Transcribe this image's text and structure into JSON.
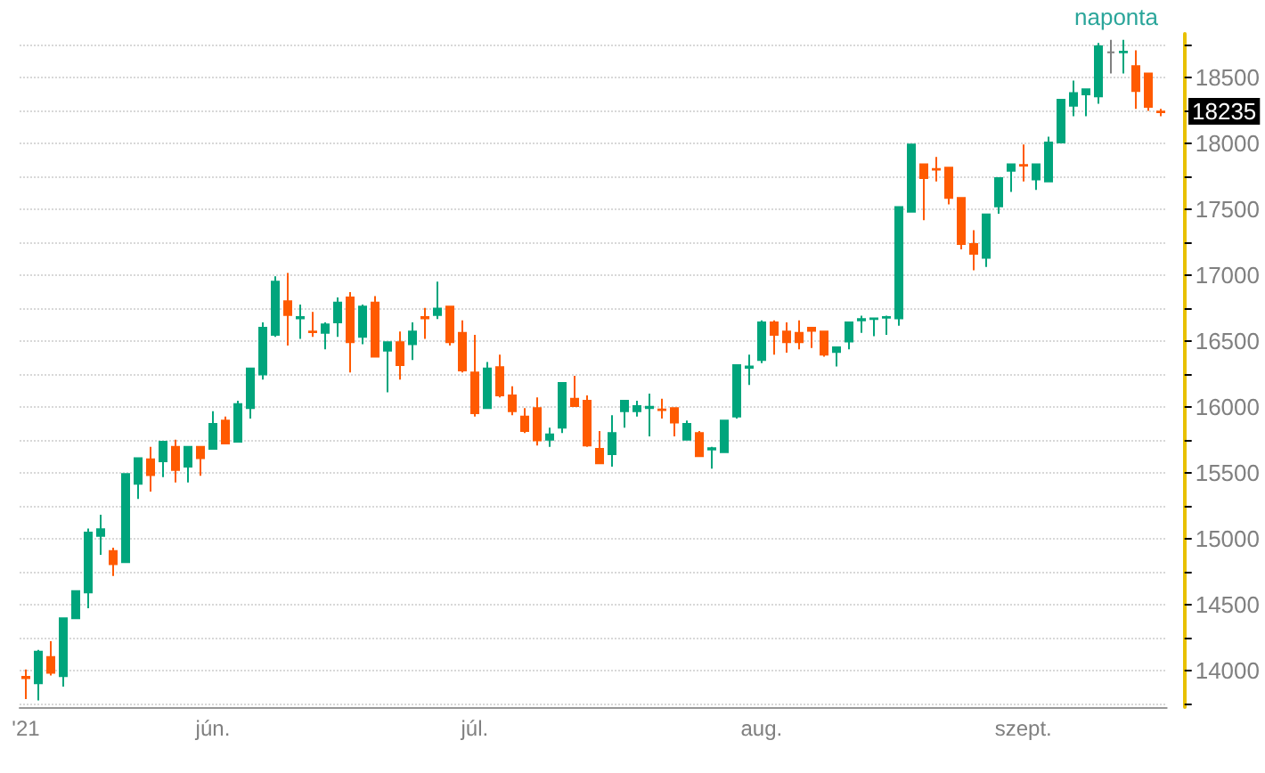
{
  "chart_data": {
    "type": "candlestick",
    "subtitle": "naponta",
    "categories": [
      "'21",
      null,
      null,
      null,
      null,
      null,
      null,
      null,
      null,
      null,
      null,
      null,
      null,
      null,
      null,
      "jún.",
      null,
      null,
      null,
      null,
      null,
      null,
      null,
      null,
      null,
      null,
      null,
      null,
      null,
      null,
      null,
      null,
      null,
      null,
      null,
      null,
      "júl.",
      null,
      null,
      null,
      null,
      null,
      null,
      null,
      null,
      null,
      null,
      null,
      null,
      null,
      null,
      null,
      null,
      null,
      null,
      null,
      null,
      null,
      null,
      "aug.",
      null,
      null,
      null,
      null,
      null,
      null,
      null,
      null,
      null,
      null,
      null,
      null,
      null,
      null,
      null,
      null,
      null,
      null,
      null,
      null,
      "szept.",
      null,
      null,
      null,
      null,
      null,
      null,
      null,
      null,
      null,
      null,
      null
    ],
    "ohlc": [
      [
        13950,
        14005,
        13780,
        13940
      ],
      [
        13900,
        14155,
        13770,
        14140
      ],
      [
        14100,
        14220,
        13960,
        13980
      ],
      [
        13955,
        14400,
        13875,
        14395
      ],
      [
        14395,
        14600,
        14390,
        14600
      ],
      [
        14590,
        15075,
        14470,
        15045
      ],
      [
        15020,
        15180,
        14875,
        15070
      ],
      [
        14905,
        14930,
        14715,
        14805
      ],
      [
        14820,
        15490,
        14820,
        15490
      ],
      [
        15415,
        15615,
        15300,
        15610
      ],
      [
        15600,
        15695,
        15355,
        15480
      ],
      [
        15585,
        15735,
        15465,
        15735
      ],
      [
        15695,
        15750,
        15425,
        15520
      ],
      [
        15545,
        15695,
        15425,
        15695
      ],
      [
        15695,
        15695,
        15475,
        15610
      ],
      [
        15680,
        15965,
        15675,
        15870
      ],
      [
        15895,
        15925,
        15715,
        15720
      ],
      [
        15735,
        16045,
        15730,
        16020
      ],
      [
        15990,
        16290,
        15910,
        16290
      ],
      [
        16245,
        16640,
        16205,
        16600
      ],
      [
        16545,
        16990,
        16530,
        16950
      ],
      [
        16800,
        17015,
        16465,
        16695
      ],
      [
        16670,
        16775,
        16515,
        16680
      ],
      [
        16570,
        16720,
        16530,
        16565
      ],
      [
        16560,
        16640,
        16435,
        16625
      ],
      [
        16640,
        16830,
        16530,
        16790
      ],
      [
        16830,
        16870,
        16260,
        16490
      ],
      [
        16530,
        16775,
        16475,
        16760
      ],
      [
        16790,
        16840,
        16380,
        16380
      ],
      [
        16425,
        16490,
        16110,
        16490
      ],
      [
        16490,
        16570,
        16205,
        16315
      ],
      [
        16475,
        16640,
        16355,
        16570
      ],
      [
        16680,
        16750,
        16515,
        16670
      ],
      [
        16695,
        16950,
        16665,
        16745
      ],
      [
        16760,
        16760,
        16465,
        16490
      ],
      [
        16560,
        16655,
        16260,
        16275
      ],
      [
        16260,
        16545,
        15925,
        15950
      ],
      [
        15990,
        16340,
        15990,
        16290
      ],
      [
        16300,
        16395,
        16070,
        16085
      ],
      [
        16085,
        16155,
        15935,
        15965
      ],
      [
        15925,
        15990,
        15800,
        15815
      ],
      [
        15990,
        16070,
        15705,
        15745
      ],
      [
        15750,
        15840,
        15695,
        15790
      ],
      [
        15840,
        16180,
        15800,
        16180
      ],
      [
        16060,
        16235,
        16000,
        16005
      ],
      [
        16045,
        16085,
        15695,
        15705
      ],
      [
        15680,
        15815,
        15570,
        15570
      ],
      [
        15640,
        15935,
        15545,
        15800
      ],
      [
        15965,
        16045,
        15840,
        16045
      ],
      [
        15965,
        16045,
        15925,
        16005
      ],
      [
        15990,
        16100,
        15775,
        16000
      ],
      [
        15980,
        16060,
        15910,
        15975
      ],
      [
        15990,
        15990,
        15775,
        15880
      ],
      [
        15750,
        15895,
        15745,
        15870
      ],
      [
        15800,
        15815,
        15625,
        15625
      ],
      [
        15675,
        15695,
        15530,
        15685
      ],
      [
        15655,
        15895,
        15655,
        15895
      ],
      [
        15925,
        16315,
        15910,
        16315
      ],
      [
        16295,
        16395,
        16165,
        16305
      ],
      [
        16355,
        16655,
        16330,
        16640
      ],
      [
        16640,
        16655,
        16395,
        16545
      ],
      [
        16570,
        16640,
        16410,
        16490
      ],
      [
        16560,
        16655,
        16435,
        16490
      ],
      [
        16600,
        16600,
        16445,
        16575
      ],
      [
        16570,
        16575,
        16380,
        16395
      ],
      [
        16415,
        16450,
        16305,
        16450
      ],
      [
        16495,
        16640,
        16435,
        16640
      ],
      [
        16655,
        16690,
        16560,
        16665
      ],
      [
        16665,
        16675,
        16535,
        16670
      ],
      [
        16675,
        16690,
        16545,
        16680
      ],
      [
        16670,
        17515,
        16615,
        17515
      ],
      [
        17480,
        17990,
        17480,
        17990
      ],
      [
        17840,
        17840,
        17415,
        17735
      ],
      [
        17805,
        17895,
        17710,
        17800
      ],
      [
        17815,
        17815,
        17535,
        17585
      ],
      [
        17585,
        17585,
        17195,
        17235
      ],
      [
        17235,
        17340,
        17035,
        17160
      ],
      [
        17130,
        17460,
        17060,
        17460
      ],
      [
        17520,
        17740,
        17465,
        17735
      ],
      [
        17790,
        17840,
        17630,
        17840
      ],
      [
        17835,
        17990,
        17710,
        17830
      ],
      [
        17725,
        17840,
        17645,
        17840
      ],
      [
        17710,
        18050,
        17710,
        18005
      ],
      [
        18005,
        18330,
        18000,
        18330
      ],
      [
        18285,
        18475,
        18205,
        18380
      ],
      [
        18370,
        18410,
        18205,
        18410
      ],
      [
        18355,
        18760,
        18300,
        18735
      ],
      [
        18690,
        18785,
        18530,
        18690
      ],
      [
        18690,
        18785,
        18530,
        18695
      ],
      [
        18585,
        18705,
        18260,
        18395
      ],
      [
        18530,
        18530,
        18245,
        18275
      ],
      [
        18240,
        18260,
        18205,
        18235
      ]
    ],
    "colors": [
      "#ff5a00",
      "#00a57c",
      "#ff5a00",
      "#00a57c",
      "#00a57c",
      "#00a57c",
      "#00a57c",
      "#ff5a00",
      "#00a57c",
      "#00a57c",
      "#ff5a00",
      "#00a57c",
      "#ff5a00",
      "#00a57c",
      "#ff5a00",
      "#00a57c",
      "#ff5a00",
      "#00a57c",
      "#00a57c",
      "#00a57c",
      "#00a57c",
      "#ff5a00",
      "#00a57c",
      "#ff5a00",
      "#00a57c",
      "#00a57c",
      "#ff5a00",
      "#00a57c",
      "#ff5a00",
      "#00a57c",
      "#ff5a00",
      "#00a57c",
      "#ff5a00",
      "#00a57c",
      "#ff5a00",
      "#ff5a00",
      "#ff5a00",
      "#00a57c",
      "#ff5a00",
      "#ff5a00",
      "#ff5a00",
      "#ff5a00",
      "#00a57c",
      "#00a57c",
      "#ff5a00",
      "#ff5a00",
      "#ff5a00",
      "#00a57c",
      "#00a57c",
      "#00a57c",
      "#00a57c",
      "#ff5a00",
      "#ff5a00",
      "#00a57c",
      "#ff5a00",
      "#00a57c",
      "#00a57c",
      "#00a57c",
      "#00a57c",
      "#00a57c",
      "#ff5a00",
      "#ff5a00",
      "#ff5a00",
      "#ff5a00",
      "#ff5a00",
      "#00a57c",
      "#00a57c",
      "#00a57c",
      "#00a57c",
      "#00a57c",
      "#00a57c",
      "#00a57c",
      "#ff5a00",
      "#ff5a00",
      "#ff5a00",
      "#ff5a00",
      "#ff5a00",
      "#00a57c",
      "#00a57c",
      "#00a57c",
      "#ff5a00",
      "#00a57c",
      "#00a57c",
      "#00a57c",
      "#00a57c",
      "#00a57c",
      "#00a57c",
      "#808080",
      "#00a57c",
      "#ff5a00",
      "#ff5a00",
      "#ff5a00"
    ],
    "ylim": [
      13720,
      18830
    ],
    "yticks": [
      {
        "value": 13750,
        "label": null
      },
      14000,
      {
        "value": 14250,
        "label": null
      },
      14500,
      {
        "value": 14750,
        "label": null
      },
      15000,
      {
        "value": 15250,
        "label": null
      },
      15500,
      {
        "value": 15750,
        "label": null
      },
      16000,
      {
        "value": 16250,
        "label": null
      },
      16500,
      {
        "value": 16750,
        "label": null
      },
      17000,
      {
        "value": 17250,
        "label": null
      },
      17500,
      {
        "value": 17750,
        "label": null
      },
      18000,
      {
        "value": 18250,
        "label": null
      },
      18500,
      {
        "value": 18750,
        "label": null
      }
    ],
    "grid": "y",
    "annotations": [
      "18235"
    ]
  }
}
